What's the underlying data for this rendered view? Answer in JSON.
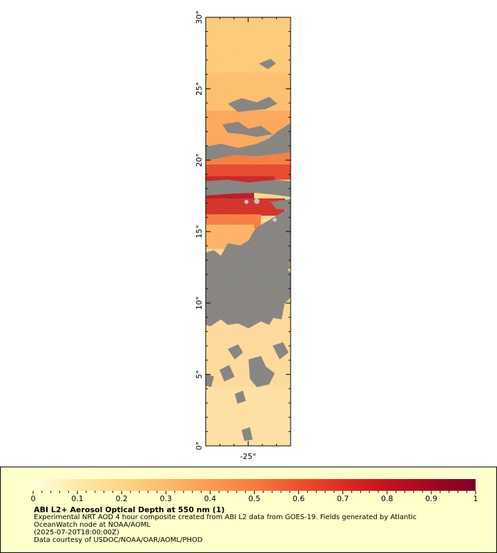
{
  "map": {
    "lat_labels": [
      "0°",
      "5°",
      "10°",
      "15°",
      "20°",
      "25°",
      "30°"
    ],
    "lon_labels": [
      "-25°"
    ],
    "lat_range": [
      0,
      30
    ],
    "lon_range": [
      -28,
      -22
    ],
    "no_data_color": "#808080"
  },
  "colorbar": {
    "ticks": [
      "0",
      "0.1",
      "0.2",
      "0.3",
      "0.4",
      "0.5",
      "0.6",
      "0.7",
      "0.8",
      "0.9",
      "1"
    ],
    "range": [
      0,
      1
    ],
    "colors": [
      "#ffffe0",
      "#fee9a8",
      "#fed586",
      "#febb6a",
      "#fd9a50",
      "#f97a3c",
      "#f1502e",
      "#e02a22",
      "#c8101f",
      "#a50622",
      "#800026"
    ]
  },
  "legend": {
    "title": "ABI L2+ Aerosol Optical Depth at 550 nm (1)",
    "line1": "Experimental NRT AOD 4 hour composite created from ABI L2 data from GOES-19. Fields generated by Atlantic",
    "line2": "OceanWatch node at NOAA/AOML",
    "line3": "(2025-07-20T18:00:00Z)",
    "line4": "Data courtesy of USDOC/NOAA/OAR/AOML/PHOD"
  }
}
